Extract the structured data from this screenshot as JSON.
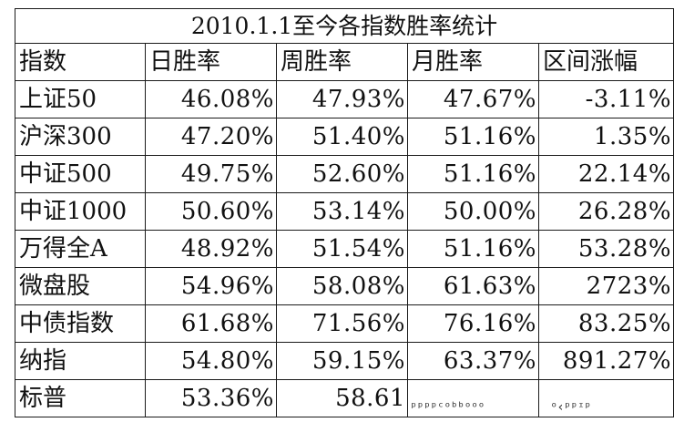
{
  "title": "2010.1.1至今各指数胜率统计",
  "columns": [
    "指数",
    "日胜率",
    "周胜率",
    "月胜率",
    "区间涨幅"
  ],
  "rows": [
    {
      "name": "上证50",
      "daily": "46.08%",
      "weekly": "47.93%",
      "monthly": "47.67%",
      "range": "-3.11%"
    },
    {
      "name": "沪深300",
      "daily": "47.20%",
      "weekly": "51.40%",
      "monthly": "51.16%",
      "range": "1.35%"
    },
    {
      "name": "中证500",
      "daily": "49.75%",
      "weekly": "52.60%",
      "monthly": "51.16%",
      "range": "22.14%"
    },
    {
      "name": "中证1000",
      "daily": "50.60%",
      "weekly": "53.14%",
      "monthly": "50.00%",
      "range": "26.28%"
    },
    {
      "name": "万得全A",
      "daily": "48.92%",
      "weekly": "51.54%",
      "monthly": "51.16%",
      "range": "53.28%"
    },
    {
      "name": "微盘股",
      "daily": "54.96%",
      "weekly": "58.08%",
      "monthly": "61.63%",
      "range": "2723%"
    },
    {
      "name": "中债指数",
      "daily": "61.68%",
      "weekly": "71.56%",
      "monthly": "76.16%",
      "range": "83.25%"
    },
    {
      "name": "纳指",
      "daily": "54.80%",
      "weekly": "59.15%",
      "monthly": "63.37%",
      "range": "891.27%"
    },
    {
      "name": "标普",
      "daily": "53.36%",
      "weekly": "58.61",
      "monthly": "",
      "range": ""
    }
  ]
}
